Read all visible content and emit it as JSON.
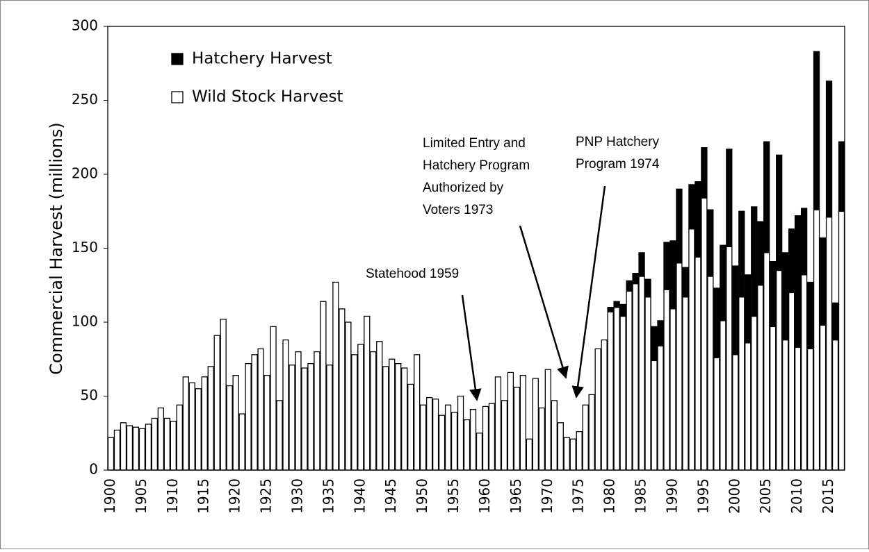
{
  "chart_data": {
    "type": "stacked_bar",
    "ylabel": "Commercial Harvest (millions)",
    "ylim": [
      0,
      300
    ],
    "yticks": [
      0,
      50,
      100,
      150,
      200,
      250,
      300
    ],
    "categories": [
      "1900",
      null,
      null,
      null,
      null,
      "1905",
      null,
      null,
      null,
      null,
      "1910",
      null,
      null,
      null,
      null,
      "1915",
      null,
      null,
      null,
      null,
      "1920",
      null,
      null,
      null,
      null,
      "1925",
      null,
      null,
      null,
      null,
      "1930",
      null,
      null,
      null,
      null,
      "1935",
      null,
      null,
      null,
      null,
      "1940",
      null,
      null,
      null,
      null,
      "1945",
      null,
      null,
      null,
      null,
      "1950",
      null,
      null,
      null,
      null,
      "1955",
      null,
      null,
      null,
      null,
      "1960",
      null,
      null,
      null,
      null,
      "1965",
      null,
      null,
      null,
      null,
      "1970",
      null,
      null,
      null,
      null,
      "1975",
      null,
      null,
      null,
      null,
      "1980",
      null,
      null,
      null,
      null,
      "1985",
      null,
      null,
      null,
      null,
      "1990",
      null,
      null,
      null,
      null,
      "1995",
      null,
      null,
      null,
      null,
      "2000",
      null,
      null,
      null,
      null,
      "2005",
      null,
      null,
      null,
      null,
      "2010",
      null,
      null,
      null,
      null,
      "2015",
      null,
      null
    ],
    "series": [
      {
        "name": "Wild Stock Harvest",
        "color": "#ffffff",
        "values": [
          22,
          27,
          32,
          30,
          29,
          28,
          31,
          35,
          42,
          35,
          33,
          44,
          63,
          59,
          55,
          63,
          70,
          91,
          102,
          57,
          64,
          38,
          72,
          78,
          82,
          64,
          97,
          47,
          88,
          71,
          80,
          69,
          72,
          80,
          114,
          71,
          127,
          109,
          100,
          78,
          85,
          104,
          80,
          87,
          70,
          75,
          72,
          69,
          58,
          78,
          44,
          49,
          48,
          37,
          44,
          39,
          50,
          34,
          41,
          25,
          43,
          45,
          63,
          47,
          66,
          56,
          64,
          21,
          62,
          42,
          68,
          47,
          32,
          22,
          21,
          26,
          44,
          51,
          82,
          88,
          107,
          110,
          104,
          121,
          126,
          131,
          117,
          74,
          84,
          122,
          109,
          140,
          117,
          163,
          144,
          184,
          131,
          76,
          101,
          151,
          78,
          117,
          86,
          104,
          125,
          147,
          97,
          135,
          88,
          120,
          83,
          132,
          82,
          176,
          98,
          171,
          88,
          175
        ]
      },
      {
        "name": "Hatchery Harvest",
        "color": "#000000",
        "values": [
          0,
          0,
          0,
          0,
          0,
          0,
          0,
          0,
          0,
          0,
          0,
          0,
          0,
          0,
          0,
          0,
          0,
          0,
          0,
          0,
          0,
          0,
          0,
          0,
          0,
          0,
          0,
          0,
          0,
          0,
          0,
          0,
          0,
          0,
          0,
          0,
          0,
          0,
          0,
          0,
          0,
          0,
          0,
          0,
          0,
          0,
          0,
          0,
          0,
          0,
          0,
          0,
          0,
          0,
          0,
          0,
          0,
          0,
          0,
          0,
          0,
          0,
          0,
          0,
          0,
          0,
          0,
          0,
          0,
          0,
          0,
          0,
          0,
          0,
          0,
          0,
          0,
          0,
          0,
          0,
          3,
          4,
          8,
          7,
          7,
          16,
          12,
          23,
          17,
          32,
          46,
          50,
          20,
          30,
          51,
          34,
          45,
          47,
          51,
          66,
          60,
          58,
          46,
          74,
          43,
          75,
          44,
          78,
          59,
          43,
          89,
          45,
          45,
          107,
          59,
          92,
          25,
          47
        ]
      }
    ],
    "annotations": [
      {
        "lines": [
          "Statehood 1959"
        ]
      },
      {
        "lines": [
          "Limited Entry and",
          "Hatchery Program",
          "Authorized by",
          "Voters 1973"
        ]
      },
      {
        "lines": [
          "PNP Hatchery",
          "Program 1974"
        ]
      }
    ]
  }
}
